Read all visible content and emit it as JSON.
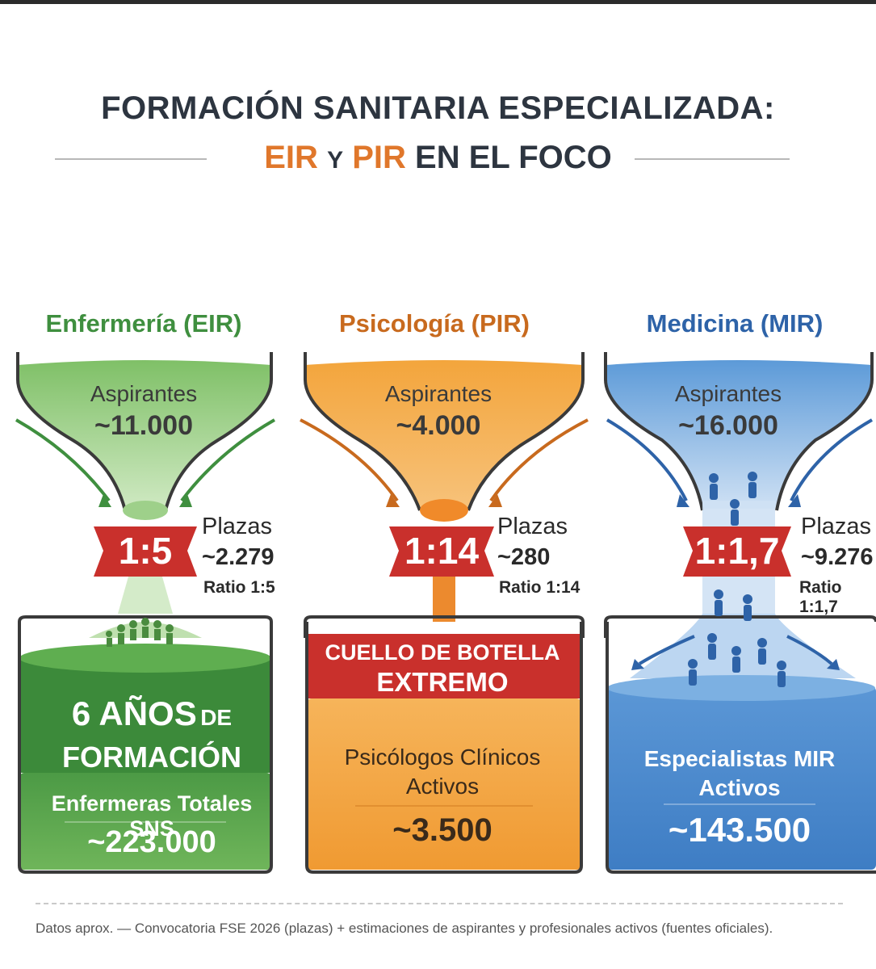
{
  "title": {
    "line1": "FORMACIÓN SANITARIA ESPECIALIZADA:",
    "line2_part1": "EIR",
    "line2_part2": "Y",
    "line2_part3": "PIR",
    "line2_part4": "EN EL FOCO"
  },
  "colors": {
    "eir": "#4f9a45",
    "pir": "#f0a03c",
    "mir": "#4a86cc",
    "badge": "#c9302c",
    "accent": "#e0772b"
  },
  "columns": {
    "eir": {
      "title": "Enfermería (EIR)",
      "aspirants_label": "Aspirantes",
      "aspirants_value": "~11.000",
      "ratio": "1:5",
      "plazas_label": "Plazas",
      "plazas_value": "~2.279",
      "ratio_text": "Ratio 1:5",
      "years_big": "6 AÑOS",
      "years_small": "DE",
      "years_word": "FORMACIÓN",
      "professionals_label": "Enfermeras Totales SNS",
      "professionals_value": "~223.000"
    },
    "pir": {
      "title": "Psicología (PIR)",
      "aspirants_label": "Aspirantes",
      "aspirants_value": "~4.000",
      "ratio": "1:14",
      "plazas_label": "Plazas",
      "plazas_value": "~280",
      "ratio_text": "Ratio 1:14",
      "bottleneck_line1": "CUELLO DE BOTELLA",
      "bottleneck_line2": "EXTREMO",
      "professionals_label": "Psicólogos Clínicos Activos",
      "professionals_value": "~3.500"
    },
    "mir": {
      "title": "Medicina (MIR)",
      "aspirants_label": "Aspirantes",
      "aspirants_value": "~16.000",
      "ratio": "1:1,7",
      "plazas_label": "Plazas",
      "plazas_value": "~9.276",
      "ratio_text": "Ratio 1:1,7",
      "professionals_label": "Especialistas MIR Activos",
      "professionals_value": "~143.500"
    }
  },
  "footer": "Datos aprox. — Convocatoria FSE 2026 (plazas) + estimaciones de aspirantes y profesionales activos (fuentes oficiales)."
}
